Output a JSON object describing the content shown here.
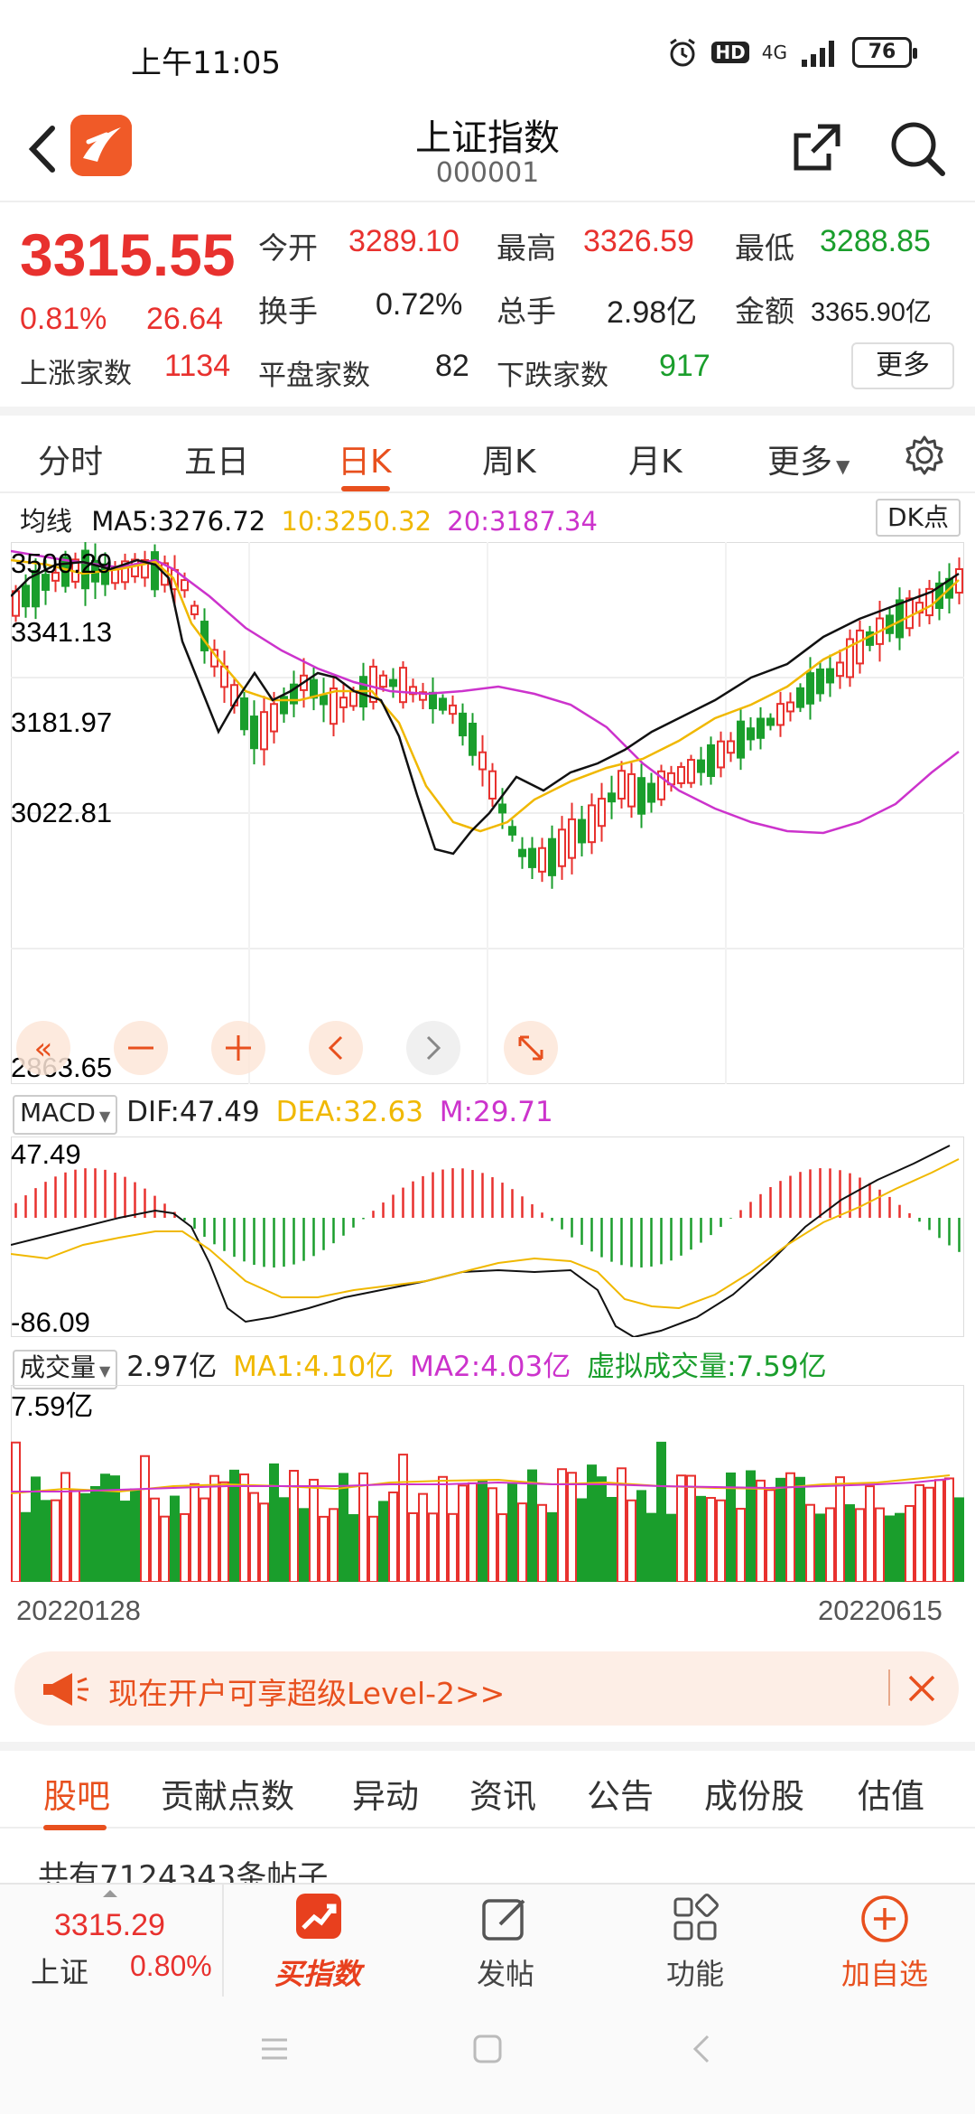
{
  "status": {
    "time": "上午11:05",
    "network": "4G",
    "hd": "HD",
    "battery": "76"
  },
  "header": {
    "title": "上证指数",
    "code": "000001"
  },
  "quote": {
    "price": "3315.55",
    "pct": "0.81%",
    "change": "26.64",
    "open_label": "今开",
    "open": "3289.10",
    "high_label": "最高",
    "high": "3326.59",
    "low_label": "最低",
    "low": "3288.85",
    "turnover_label": "换手",
    "turnover": "0.72%",
    "volume_label": "总手",
    "volume": "2.98亿",
    "amount_label": "金额",
    "amount": "3365.90亿",
    "up_label": "上涨家数",
    "up": "1134",
    "flat_label": "平盘家数",
    "flat": "82",
    "down_label": "下跌家数",
    "down": "917",
    "more": "更多"
  },
  "tabs": {
    "t1": "分时",
    "t2": "五日",
    "t3": "日K",
    "t4": "周K",
    "t5": "月K",
    "t6": "更多"
  },
  "ma": {
    "label": "均线",
    "ma5": "MA5:3276.72",
    "ma10": "10:3250.32",
    "ma20": "20:3187.34",
    "dk": "DK点"
  },
  "kchart": {
    "y_ticks": [
      "3500.29",
      "3341.13",
      "3181.97",
      "3022.81",
      "2863.65"
    ],
    "colors": {
      "up": "#e8312e",
      "down": "#1a9e2c",
      "ma5": "#111111",
      "ma10": "#f0b800",
      "ma20": "#cc33cc"
    }
  },
  "macd": {
    "label": "MACD",
    "dif": "DIF:47.49",
    "dea": "DEA:32.63",
    "m": "M:29.71",
    "top": "47.49",
    "bottom": "-86.09"
  },
  "volume": {
    "label": "成交量",
    "value": "2.97亿",
    "ma1": "MA1:4.10亿",
    "ma2": "MA2:4.03亿",
    "virtual": "虚拟成交量:7.59亿",
    "top": "7.59亿"
  },
  "dates": {
    "start": "20220128",
    "end": "20220615"
  },
  "promo": {
    "text": "现在开户可享超级Level-2>>"
  },
  "forum_tabs": {
    "f1": "股吧",
    "f2": "贡献点数",
    "f3": "异动",
    "f4": "资讯",
    "f5": "公告",
    "f6": "成份股",
    "f7": "估值"
  },
  "forum": {
    "count": "共有7124343条帖子"
  },
  "bottom": {
    "index_price": "3315.29",
    "index_name": "上证",
    "index_pct": "0.80%",
    "buy": "买指数",
    "post": "发帖",
    "func": "功能",
    "add": "加自选"
  }
}
